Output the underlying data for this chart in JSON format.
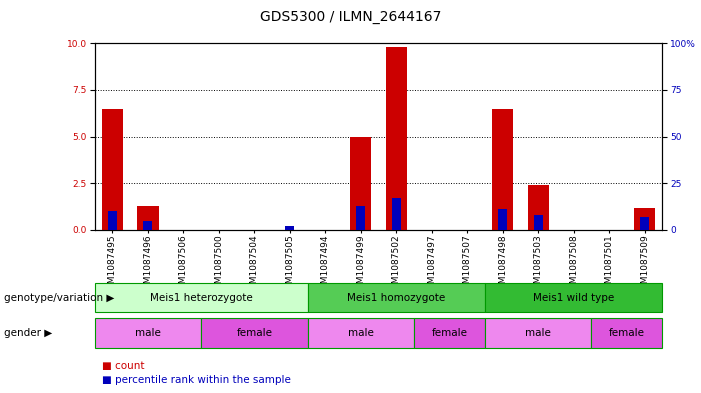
{
  "title": "GDS5300 / ILMN_2644167",
  "samples": [
    "GSM1087495",
    "GSM1087496",
    "GSM1087506",
    "GSM1087500",
    "GSM1087504",
    "GSM1087505",
    "GSM1087494",
    "GSM1087499",
    "GSM1087502",
    "GSM1087497",
    "GSM1087507",
    "GSM1087498",
    "GSM1087503",
    "GSM1087508",
    "GSM1087501",
    "GSM1087509"
  ],
  "count_vals": [
    6.5,
    1.3,
    0.0,
    0.0,
    0.0,
    0.0,
    0.0,
    5.0,
    9.8,
    0.0,
    0.0,
    6.5,
    2.4,
    0.0,
    0.0,
    1.2
  ],
  "percentile_values": [
    10.0,
    5.0,
    0.0,
    0.0,
    0.0,
    2.0,
    0.0,
    13.0,
    17.0,
    0.0,
    0.0,
    11.0,
    8.0,
    0.0,
    0.0,
    7.0
  ],
  "ylim_left": [
    0,
    10
  ],
  "ylim_right": [
    0,
    100
  ],
  "yticks_left": [
    0,
    2.5,
    5,
    7.5,
    10
  ],
  "yticks_right": [
    0,
    25,
    50,
    75,
    100
  ],
  "bar_color_red": "#cc0000",
  "bar_color_blue": "#0000bb",
  "genotype_groups": [
    {
      "label": "Meis1 heterozygote",
      "start": 0,
      "end": 5,
      "color": "#ccffcc"
    },
    {
      "label": "Meis1 homozygote",
      "start": 6,
      "end": 10,
      "color": "#55cc55"
    },
    {
      "label": "Meis1 wild type",
      "start": 11,
      "end": 15,
      "color": "#33bb33"
    }
  ],
  "gender_groups": [
    {
      "label": "male",
      "start": 0,
      "end": 2,
      "color": "#ee88ee"
    },
    {
      "label": "female",
      "start": 3,
      "end": 5,
      "color": "#dd55dd"
    },
    {
      "label": "male",
      "start": 6,
      "end": 8,
      "color": "#ee88ee"
    },
    {
      "label": "female",
      "start": 9,
      "end": 10,
      "color": "#dd55dd"
    },
    {
      "label": "male",
      "start": 11,
      "end": 13,
      "color": "#ee88ee"
    },
    {
      "label": "female",
      "start": 14,
      "end": 15,
      "color": "#dd55dd"
    }
  ],
  "left_label_genotype": "genotype/variation",
  "left_label_gender": "gender",
  "legend_count": "count",
  "legend_pct": "percentile rank within the sample",
  "title_fontsize": 10,
  "tick_fontsize": 6.5,
  "annot_fontsize": 7.5
}
